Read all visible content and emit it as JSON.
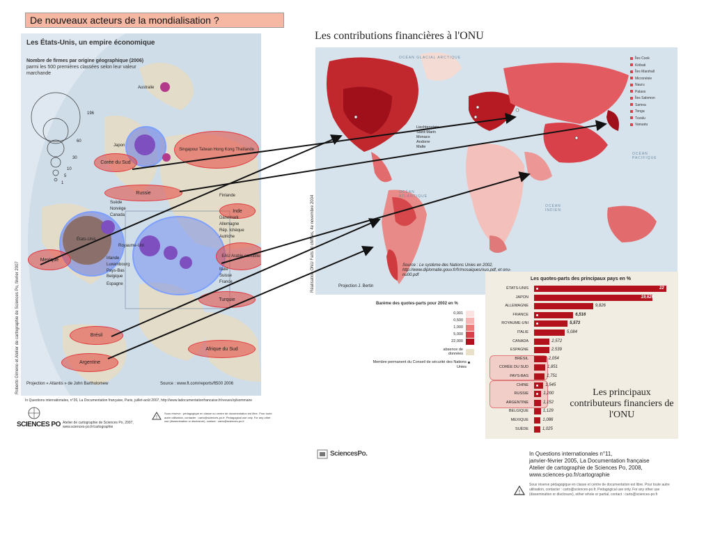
{
  "slide": {
    "title": "De nouveaux acteurs de la mondialisation  ?"
  },
  "left_map": {
    "title": "Les États-Unis, un empire économique",
    "subtitle_bold": "Nombre de firmes par origine géographique (2006)",
    "subtitle_rest": "parmi les 500 premières classées selon leur valeur marchande",
    "scale_values": [
      "196",
      "60",
      "30",
      "10",
      "5",
      "1"
    ],
    "ovals": [
      "Corée du Sud",
      "Russie",
      "Mexique",
      "Brésil",
      "Argentine",
      "Singapour Taïwan Hong Kong Thaïlande",
      "Inde",
      "EAU Arabie saoudite",
      "Turquie",
      "Afrique du Sud"
    ],
    "labels": [
      "Australie",
      "Japon",
      "Suède",
      "Norvège",
      "Canada",
      "États-Unis",
      "Finlande",
      "Danemark",
      "Allemagne",
      "Rép. tchèque",
      "Autriche",
      "Royaume-Uni",
      "Irlande",
      "Luxembourg",
      "Pays-Bas",
      "Belgique",
      "Espagne",
      "Italie",
      "Suisse",
      "France"
    ],
    "projection": "Projection « Atlantis » de John Bartholomew",
    "source": "Source : www.ft.com/reports/ft500 2006",
    "credit_vertical": "Roberto Gimeno et Atelier de cartographie de Sciences Po, février 2007",
    "citation": "In Questions internationales, n°26, La Documentation française, Paris, juillet-août 2007, http://www.ladocumentationfrancaise.fr/revues/qi/sommaire",
    "atelier": "Atelier de cartographie de Sciences Po, 2007, www.sciences-po.fr/cartographie",
    "logo": "SCIENCES PO",
    "warning": "Sous réserve : pédagogique en classe ou centre de documentation est libre. Pour toute autre utilisation, contacter : carto@sciences-po.fr. Pedagogical use only. For any other use (dissemination or disclosure), contact : carto@sciences-po.fr"
  },
  "right_map": {
    "title": "Les contributions financières à l'ONU",
    "ocean_arctic": "OCÉAN GLACIAL ARCTIQUE",
    "ocean_atlantic": "OCÉAN ATLANTIQUE",
    "ocean_pacific": "OCÉAN PACIFIQUE",
    "ocean_indian": "OCÉAN INDIEN",
    "small_states": [
      "Liechtenstein",
      "Saint-Marin",
      "Monaco",
      "Andorre",
      "Malte"
    ],
    "island_states": [
      "Îles Cook",
      "Kiribati",
      "Îles Marshall",
      "Micronésie",
      "Nauru",
      "Palaos",
      "Îles Salomon",
      "Samoa",
      "Tonga",
      "Tuvalu",
      "Vanuatu"
    ],
    "source": "Source : Le système des Nations Unies en 2002, http://www.diplomatie.gouv.fr/fr/mosaiques/nuo.pdf, et onu-nu00.pdf",
    "projection": "Projection J. Bertin",
    "credit_vertical": "Réalisation ONU  Faits et chiffres, 4e novembre 2004",
    "legend_title": "Barème des quotes-parts pour 2002 en %",
    "legend_values": [
      "0,001",
      "0,500",
      "1,000",
      "5,000",
      "22,000"
    ],
    "legend_colors": [
      "#fbe3e1",
      "#f5b5b2",
      "#ec7b79",
      "#d9414a",
      "#b3121d"
    ],
    "legend_absence": "absence de données",
    "legend_member": "Membre permanent du Conseil de sécurité des Nations Unies"
  },
  "chart_data": {
    "type": "bar",
    "title": "Les quotes-parts des principaux pays en %",
    "categories": [
      "ÉTATS-UNIS",
      "JAPON",
      "ALLEMAGNE",
      "FRANCE",
      "ROYAUME-UNI",
      "ITALIE",
      "CANADA",
      "ESPAGNE",
      "BRÉSIL",
      "CORÉE DU SUD",
      "PAYS-BAS",
      "CHINE",
      "RUSSIE",
      "ARGENTINE",
      "BELGIQUE",
      "MEXIQUE",
      "SUÈDE"
    ],
    "values": [
      22,
      19.629,
      9.826,
      6.516,
      5.573,
      5.084,
      2.572,
      2.539,
      2.054,
      1.851,
      1.751,
      1.545,
      1.2,
      1.152,
      1.129,
      1.086,
      1.025
    ],
    "value_labels": [
      "22",
      "19,629",
      "9,826",
      "6,516",
      "5,573",
      "5,084",
      "2,572",
      "2,539",
      "2,054",
      "1,851",
      "1,751",
      "1,545",
      "1,200",
      "1,152",
      "1,129",
      "1,086",
      "1,025"
    ],
    "permanent_members": [
      "ÉTATS-UNIS",
      "FRANCE",
      "ROYAUME-UNI",
      "CHINE",
      "RUSSIE"
    ],
    "highlighted": [
      "BRÉSIL",
      "CORÉE DU SUD",
      "CHINE",
      "RUSSIE",
      "ARGENTINE"
    ],
    "caption": "Les principaux contributeurs financiers de l'ONU",
    "bar_color": "#b3121d"
  },
  "footer": {
    "logo_right": "SciencesPo.",
    "ref_line1": "In Questions internationales n°11,",
    "ref_line2": "janvier-février 2005, La Documentation française",
    "ref_line3": "Atelier de cartographie de Sciences Po, 2008,",
    "ref_line4": "www.sciences-po.fr/cartographie",
    "warning": "Sous réserve pédagogique en classe et centre de documentation est libre. Pour toute autre utilisation, contacter : carto@sciences-po.fr. Pedagogical use only. For any other use (dissemination or disclosure), either whole or partial, contact : carto@sciences-po.fr"
  }
}
